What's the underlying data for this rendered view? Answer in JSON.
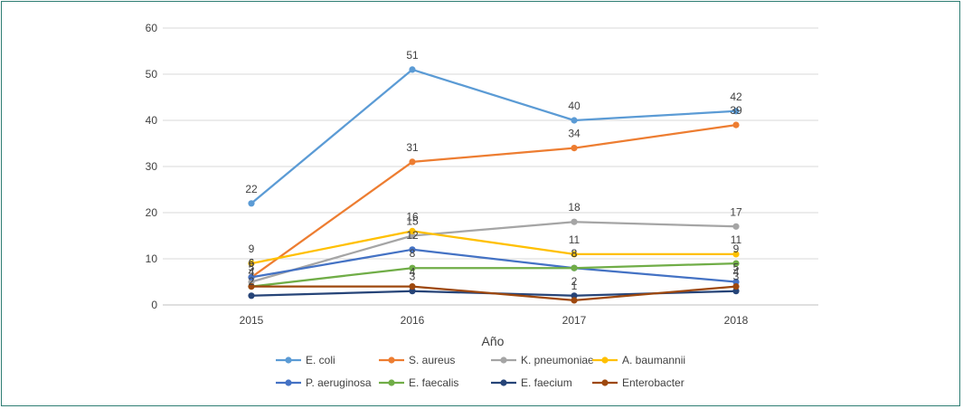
{
  "chart_data": {
    "type": "line",
    "title": "",
    "xlabel": "Año",
    "ylabel": "",
    "ylim": [
      0,
      60
    ],
    "yticks": [
      0,
      10,
      20,
      30,
      40,
      50,
      60
    ],
    "grid": true,
    "legend_position": "bottom",
    "categories": [
      "2015",
      "2016",
      "2017",
      "2018"
    ],
    "series": [
      {
        "name": "E. coli",
        "color": "#5b9bd5",
        "values": [
          22,
          51,
          40,
          42
        ]
      },
      {
        "name": "S. aureus",
        "color": "#ed7d31",
        "values": [
          6,
          31,
          34,
          39
        ]
      },
      {
        "name": "K. pneumoniae",
        "color": "#a5a5a5",
        "values": [
          5,
          15,
          18,
          17
        ]
      },
      {
        "name": "A. baumannii",
        "color": "#ffc000",
        "values": [
          9,
          16,
          11,
          11
        ]
      },
      {
        "name": "P. aeruginosa",
        "color": "#4472c4",
        "values": [
          6,
          12,
          8,
          5
        ]
      },
      {
        "name": "E. faecalis",
        "color": "#70ad47",
        "values": [
          4,
          8,
          8,
          9
        ]
      },
      {
        "name": "E. faecium",
        "color": "#264478",
        "values": [
          2,
          3,
          2,
          3
        ]
      },
      {
        "name": "Enterobacter",
        "color": "#9e480e",
        "values": [
          4,
          4,
          1,
          4
        ]
      }
    ]
  }
}
